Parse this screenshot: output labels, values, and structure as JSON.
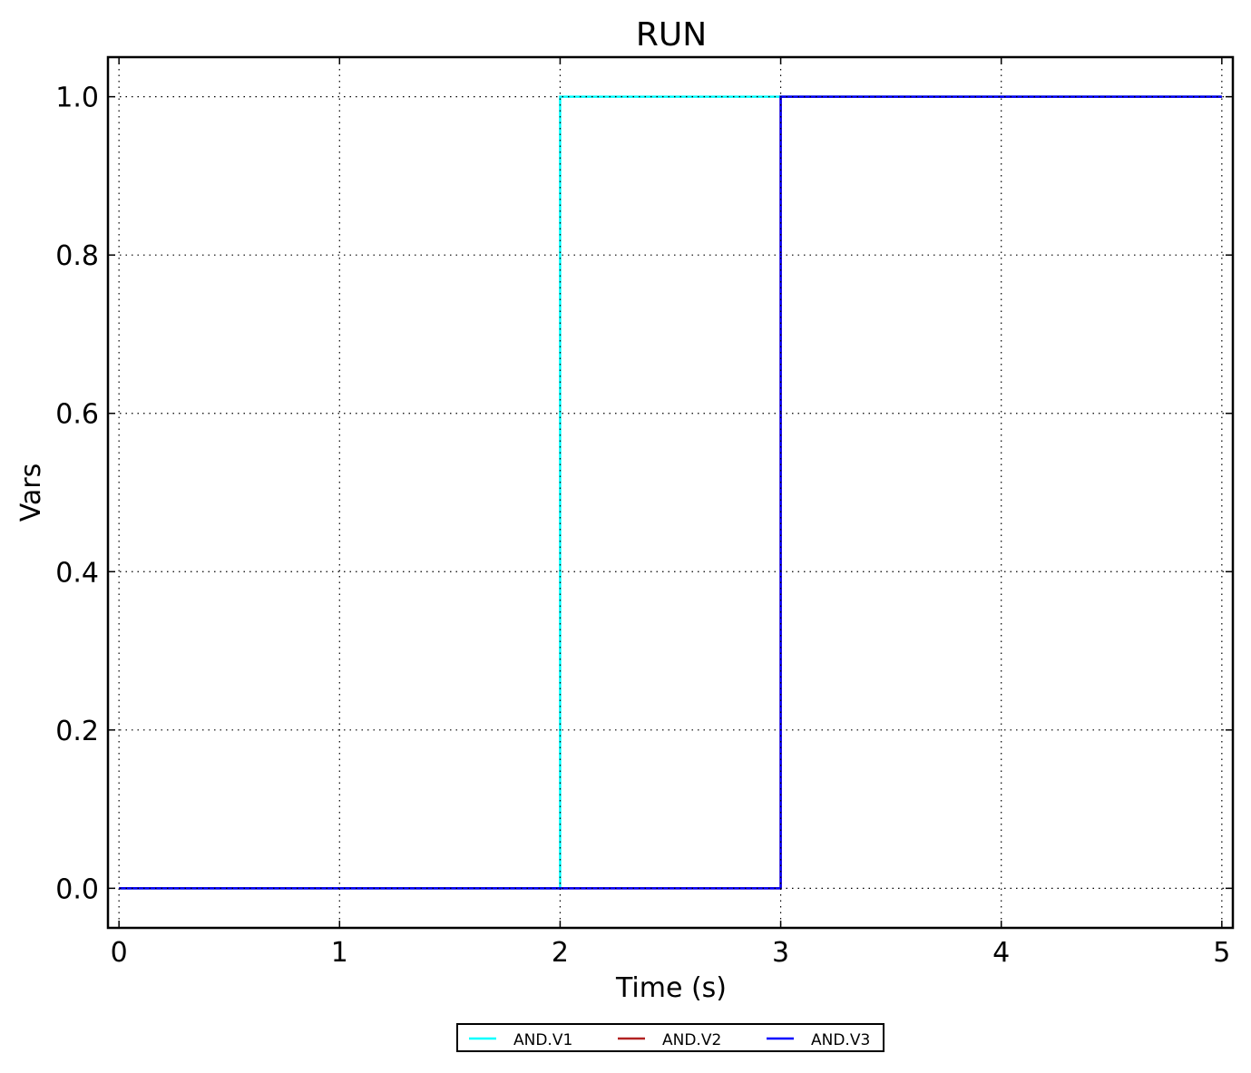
{
  "chart_data": {
    "type": "line",
    "title": "RUN",
    "xlabel": "Time (s)",
    "ylabel": "Vars",
    "xlim": [
      -0.05,
      5.05
    ],
    "ylim": [
      -0.05,
      1.05
    ],
    "xticks": [
      0,
      1,
      2,
      3,
      4,
      5
    ],
    "xtick_labels": [
      "0",
      "1",
      "2",
      "3",
      "4",
      "5"
    ],
    "yticks": [
      0.0,
      0.2,
      0.4,
      0.6,
      0.8,
      1.0
    ],
    "ytick_labels": [
      "0.0",
      "0.2",
      "0.4",
      "0.6",
      "0.8",
      "1.0"
    ],
    "grid": true,
    "legend_placement": "bottom-center-outside",
    "series": [
      {
        "name": "AND.V1",
        "color": "#00ffff",
        "step": true,
        "x": [
          0,
          2,
          2,
          5
        ],
        "y": [
          0,
          0,
          1,
          1
        ]
      },
      {
        "name": "AND.V2",
        "color": "#b22222",
        "step": true,
        "x": [
          0,
          3,
          3,
          5
        ],
        "y": [
          0,
          0,
          1,
          1
        ]
      },
      {
        "name": "AND.V3",
        "color": "#0000ff",
        "step": true,
        "x": [
          0,
          3,
          3,
          5
        ],
        "y": [
          0,
          0,
          1,
          1
        ]
      }
    ]
  }
}
